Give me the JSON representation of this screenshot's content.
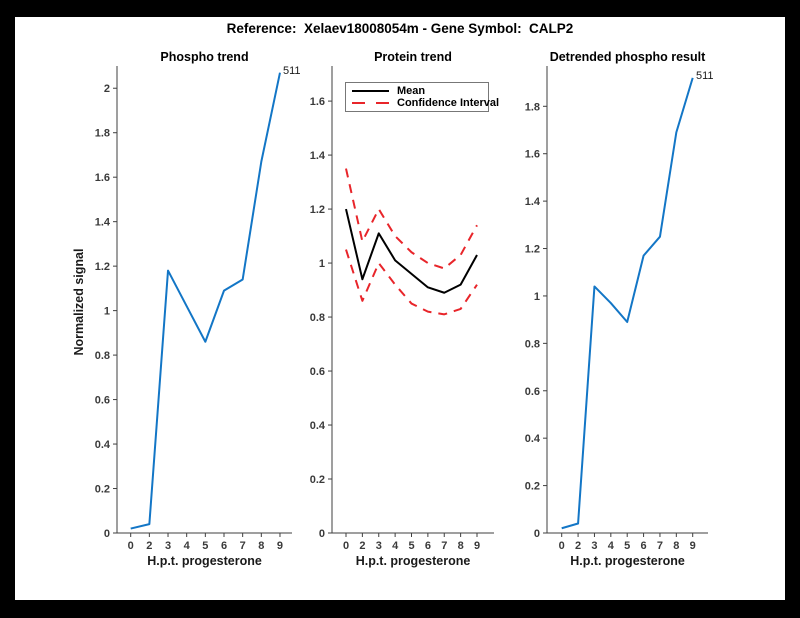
{
  "figure": {
    "title": "Reference:  Xelaev18008054m - Gene Symbol:  CALP2",
    "frame_color": "#000000",
    "canvas_color": "#ffffff",
    "accent_blue": "#1376C6",
    "accent_red": "#E8252A"
  },
  "chart_data": [
    {
      "type": "line",
      "title": "Phospho trend",
      "xlabel": "H.p.t. progesterone",
      "ylabel": "Normalized signal",
      "x_tick_labels": [
        "0",
        "2",
        "3",
        "4",
        "5",
        "6",
        "7",
        "8",
        "9"
      ],
      "ylim": [
        0,
        2.1
      ],
      "yticks": [
        0,
        0.2,
        0.4,
        0.6,
        0.8,
        1,
        1.2,
        1.4,
        1.6,
        1.8,
        2
      ],
      "ytick_labels": [
        "0",
        "0.2",
        "0.4",
        "0.6",
        "0.8",
        "1",
        "1.2",
        "1.4",
        "1.6",
        "1.8",
        "2"
      ],
      "grid": false,
      "series": [
        {
          "name": "phospho-signal",
          "color": "#1376C6",
          "style": "solid",
          "values": [
            0.02,
            0.04,
            1.18,
            1.02,
            0.86,
            1.09,
            1.14,
            1.67,
            2.07
          ]
        }
      ],
      "end_label": "511"
    },
    {
      "type": "line",
      "title": "Protein trend",
      "xlabel": "H.p.t. progesterone",
      "ylabel": "",
      "x_tick_labels": [
        "0",
        "2",
        "3",
        "4",
        "5",
        "6",
        "7",
        "8",
        "9"
      ],
      "ylim": [
        0,
        1.73
      ],
      "yticks": [
        0,
        0.2,
        0.4,
        0.6,
        0.8,
        1,
        1.2,
        1.4,
        1.6
      ],
      "ytick_labels": [
        "0",
        "0.2",
        "0.4",
        "0.6",
        "0.8",
        "1",
        "1.2",
        "1.4",
        "1.6"
      ],
      "grid": false,
      "legend": {
        "position": "top-left",
        "entries": [
          {
            "label": "Mean",
            "color": "#000000",
            "style": "solid"
          },
          {
            "label": "Confidence Interval",
            "color": "#E8252A",
            "style": "dashed"
          }
        ]
      },
      "series": [
        {
          "name": "mean",
          "color": "#000000",
          "style": "solid",
          "values": [
            1.2,
            0.94,
            1.11,
            1.01,
            0.96,
            0.91,
            0.89,
            0.92,
            1.03
          ]
        },
        {
          "name": "ci-upper",
          "color": "#E8252A",
          "style": "dashed",
          "values": [
            1.35,
            1.08,
            1.2,
            1.1,
            1.04,
            1.0,
            0.98,
            1.03,
            1.14
          ]
        },
        {
          "name": "ci-lower",
          "color": "#E8252A",
          "style": "dashed",
          "values": [
            1.05,
            0.86,
            1.0,
            0.92,
            0.85,
            0.82,
            0.81,
            0.83,
            0.92
          ]
        }
      ]
    },
    {
      "type": "line",
      "title": "Detrended phospho result",
      "xlabel": "H.p.t. progesterone",
      "ylabel": "",
      "x_tick_labels": [
        "0",
        "2",
        "3",
        "4",
        "5",
        "6",
        "7",
        "8",
        "9"
      ],
      "ylim": [
        0,
        1.97
      ],
      "yticks": [
        0,
        0.2,
        0.4,
        0.6,
        0.8,
        1,
        1.2,
        1.4,
        1.6,
        1.8
      ],
      "ytick_labels": [
        "0",
        "0.2",
        "0.4",
        "0.6",
        "0.8",
        "1",
        "1.2",
        "1.4",
        "1.6",
        "1.8"
      ],
      "grid": false,
      "series": [
        {
          "name": "detrended-phospho-signal",
          "color": "#1376C6",
          "style": "solid",
          "values": [
            0.02,
            0.04,
            1.04,
            0.97,
            0.89,
            1.17,
            1.25,
            1.69,
            1.92
          ]
        }
      ],
      "end_label": "511"
    }
  ]
}
